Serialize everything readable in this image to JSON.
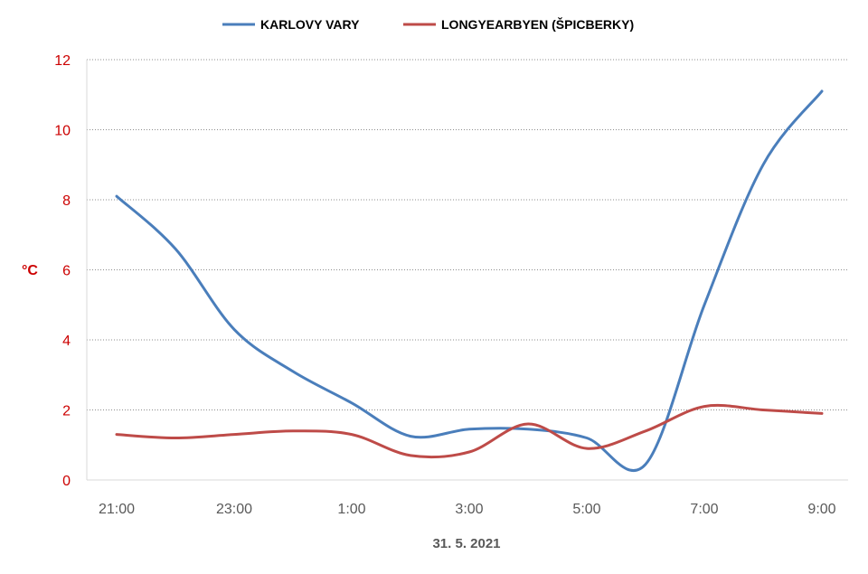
{
  "chart_data": {
    "type": "line",
    "title": "",
    "xlabel": "31. 5. 2021",
    "ylabel": "°C",
    "x_ticks": [
      "21:00",
      "23:00",
      "1:00",
      "3:00",
      "5:00",
      "7:00",
      "9:00"
    ],
    "ylim": [
      0,
      12
    ],
    "y_ticks": [
      0,
      2,
      4,
      6,
      8,
      10,
      12
    ],
    "grid": true,
    "legend_position": "top",
    "x_hours": [
      0,
      1,
      2,
      3,
      4,
      5,
      6,
      7,
      8,
      9,
      10,
      11,
      12
    ],
    "series": [
      {
        "name": "KARLOVY VARY",
        "color": "#4a7ebb",
        "values": [
          8.1,
          6.6,
          4.3,
          3.1,
          2.2,
          1.25,
          1.45,
          1.45,
          1.2,
          0.45,
          5.0,
          9.0,
          11.1
        ]
      },
      {
        "name": "LONGYEARBYEN (ŠPICBERKY)",
        "color": "#be4b48",
        "values": [
          1.3,
          1.2,
          1.3,
          1.4,
          1.3,
          0.7,
          0.8,
          1.6,
          0.9,
          1.4,
          2.1,
          2.0,
          1.9
        ]
      }
    ]
  }
}
